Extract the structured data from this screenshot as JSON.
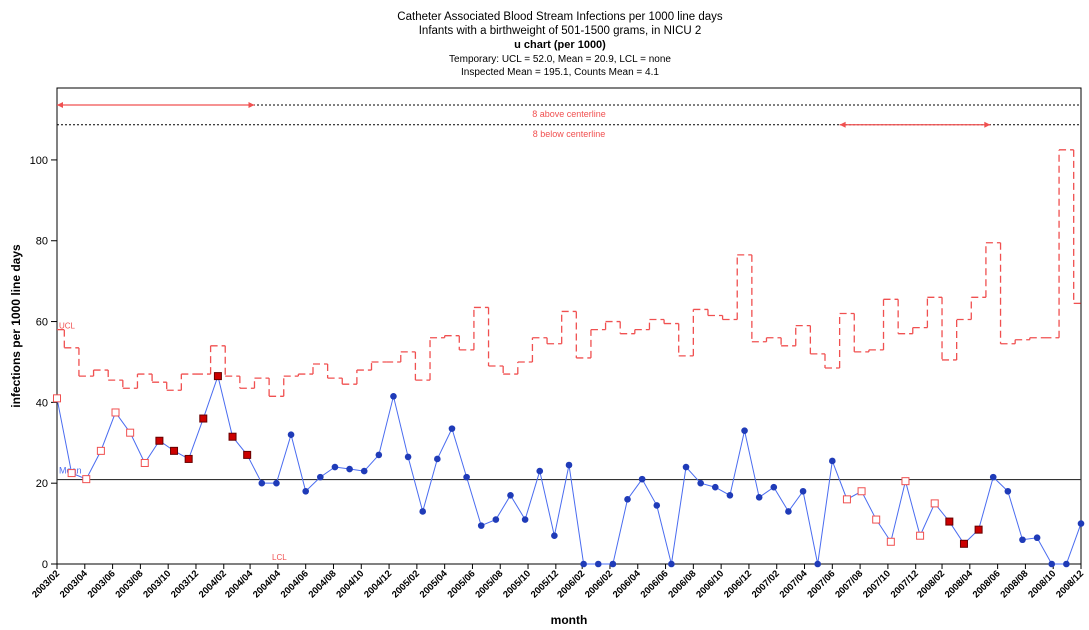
{
  "chart_data": {
    "type": "line",
    "title": "Catheter  Associated Blood Stream Infections per 1000 line days",
    "subtitles": [
      "Infants with a birthweight of 501-1500 grams, in NICU 2",
      "u chart (per 1000)",
      "Temporary: UCL = 52.0, Mean = 20.9, LCL = none",
      "Inspected Mean = 195.1, Counts Mean = 4.1"
    ],
    "ylabel": "infections per 1000 line days",
    "xlabel": "month",
    "xlim": [
      0,
      70
    ],
    "ylim": [
      0,
      117.8
    ],
    "yticks": [
      0,
      20,
      40,
      60,
      80,
      100
    ],
    "xticks": [
      {
        "value": 0,
        "label": "2003/02"
      },
      {
        "value": 1.9,
        "label": "2003/04"
      },
      {
        "value": 3.8,
        "label": "2003/06"
      },
      {
        "value": 5.7,
        "label": "2003/08"
      },
      {
        "value": 7.6,
        "label": "2003/10"
      },
      {
        "value": 9.5,
        "label": "2003/12"
      },
      {
        "value": 11.4,
        "label": "2004/02"
      },
      {
        "value": 13.2,
        "label": "2004/04"
      },
      {
        "value": 15.1,
        "label": "2004/04"
      },
      {
        "value": 17,
        "label": "2004/06"
      },
      {
        "value": 18.9,
        "label": "2004/08"
      },
      {
        "value": 20.8,
        "label": "2004/10"
      },
      {
        "value": 22.7,
        "label": "2004/12"
      },
      {
        "value": 24.6,
        "label": "2005/02"
      },
      {
        "value": 26.5,
        "label": "2005/04"
      },
      {
        "value": 28.4,
        "label": "2005/06"
      },
      {
        "value": 30.3,
        "label": "2005/08"
      },
      {
        "value": 32.2,
        "label": "2005/10"
      },
      {
        "value": 34.1,
        "label": "2005/12"
      },
      {
        "value": 35.9,
        "label": "2006/02"
      },
      {
        "value": 37.8,
        "label": "2006/02"
      },
      {
        "value": 39.7,
        "label": "2006/04"
      },
      {
        "value": 41.6,
        "label": "2006/06"
      },
      {
        "value": 43.5,
        "label": "2006/08"
      },
      {
        "value": 45.4,
        "label": "2006/10"
      },
      {
        "value": 47.3,
        "label": "2006/12"
      },
      {
        "value": 49.2,
        "label": "2007/02"
      },
      {
        "value": 51.1,
        "label": "2007/04"
      },
      {
        "value": 53,
        "label": "2007/06"
      },
      {
        "value": 54.9,
        "label": "2007/08"
      },
      {
        "value": 56.8,
        "label": "2007/10"
      },
      {
        "value": 58.7,
        "label": "2007/12"
      },
      {
        "value": 60.5,
        "label": "2008/02"
      },
      {
        "value": 62.4,
        "label": "2008/04"
      },
      {
        "value": 64.3,
        "label": "2008/06"
      },
      {
        "value": 66.2,
        "label": "2008/08"
      },
      {
        "value": 68.1,
        "label": "2008/10"
      },
      {
        "value": 70,
        "label": "2008/12"
      }
    ],
    "line_color": "#4a6cf0",
    "values": [
      41,
      22.5,
      21,
      28,
      37.5,
      32.5,
      25,
      30.5,
      28,
      26,
      36,
      46.5,
      31.5,
      27,
      20,
      20,
      32,
      18,
      21.5,
      24,
      23.5,
      23,
      27,
      41.5,
      26.5,
      13,
      26,
      33.5,
      21.5,
      9.5,
      11,
      17,
      11,
      23,
      7,
      24.5,
      0,
      0,
      0,
      16,
      21,
      14.5,
      0,
      24,
      20,
      19,
      17,
      33,
      16.5,
      19,
      13,
      18,
      0,
      25.5,
      16,
      18,
      11,
      5.5,
      20.5,
      7,
      15,
      10.5,
      5,
      8.5,
      21.5,
      18,
      6,
      6.5,
      0,
      0,
      10
    ],
    "markers": [
      "open",
      "open",
      "open",
      "open",
      "open",
      "open",
      "open",
      "filled",
      "filled",
      "filled",
      "filled",
      "filled",
      "filled",
      "filled",
      "dot",
      "dot",
      "dot",
      "dot",
      "dot",
      "dot",
      "dot",
      "dot",
      "dot",
      "dot",
      "dot",
      "dot",
      "dot",
      "dot",
      "dot",
      "dot",
      "dot",
      "dot",
      "dot",
      "dot",
      "dot",
      "dot",
      "dot",
      "dot",
      "dot",
      "dot",
      "dot",
      "dot",
      "dot",
      "dot",
      "dot",
      "dot",
      "dot",
      "dot",
      "dot",
      "dot",
      "dot",
      "dot",
      "dot",
      "dot",
      "open",
      "open",
      "open",
      "open",
      "open",
      "open",
      "open",
      "filled",
      "filled",
      "filled",
      "dot",
      "dot",
      "dot",
      "dot",
      "dot",
      "dot",
      "dot"
    ],
    "ucl": [
      58,
      53.5,
      46.5,
      48,
      45.5,
      43.5,
      47,
      45,
      43,
      47,
      47,
      54,
      46.5,
      43.5,
      46,
      41.5,
      46.5,
      47,
      49.5,
      46,
      44.5,
      48,
      50,
      50,
      52.5,
      45.5,
      56,
      56.5,
      53,
      63.5,
      49,
      47,
      50,
      56,
      54.5,
      62.5,
      51,
      58,
      60,
      57,
      58,
      60.5,
      59.5,
      51.5,
      63,
      61.5,
      60.5,
      76.5,
      55,
      56,
      54,
      59,
      52,
      48.5,
      62,
      52.5,
      53,
      65.5,
      57,
      58.5,
      66,
      50.5,
      60.5,
      66,
      79.5,
      54.5,
      55.5,
      56,
      56,
      102.5,
      64.5
    ],
    "ucl_color": "#f05050",
    "ucl_label": "UCL",
    "mean": 20.9,
    "mean_label": "Mean",
    "lcl_label": "LCL",
    "annotations": [
      {
        "text": "8 above centerline",
        "value": 113.6,
        "from": 0,
        "to": 13.5
      },
      {
        "text": "8 below centerline",
        "value": 108.7,
        "from": 53.5,
        "to": 63.8
      }
    ]
  }
}
